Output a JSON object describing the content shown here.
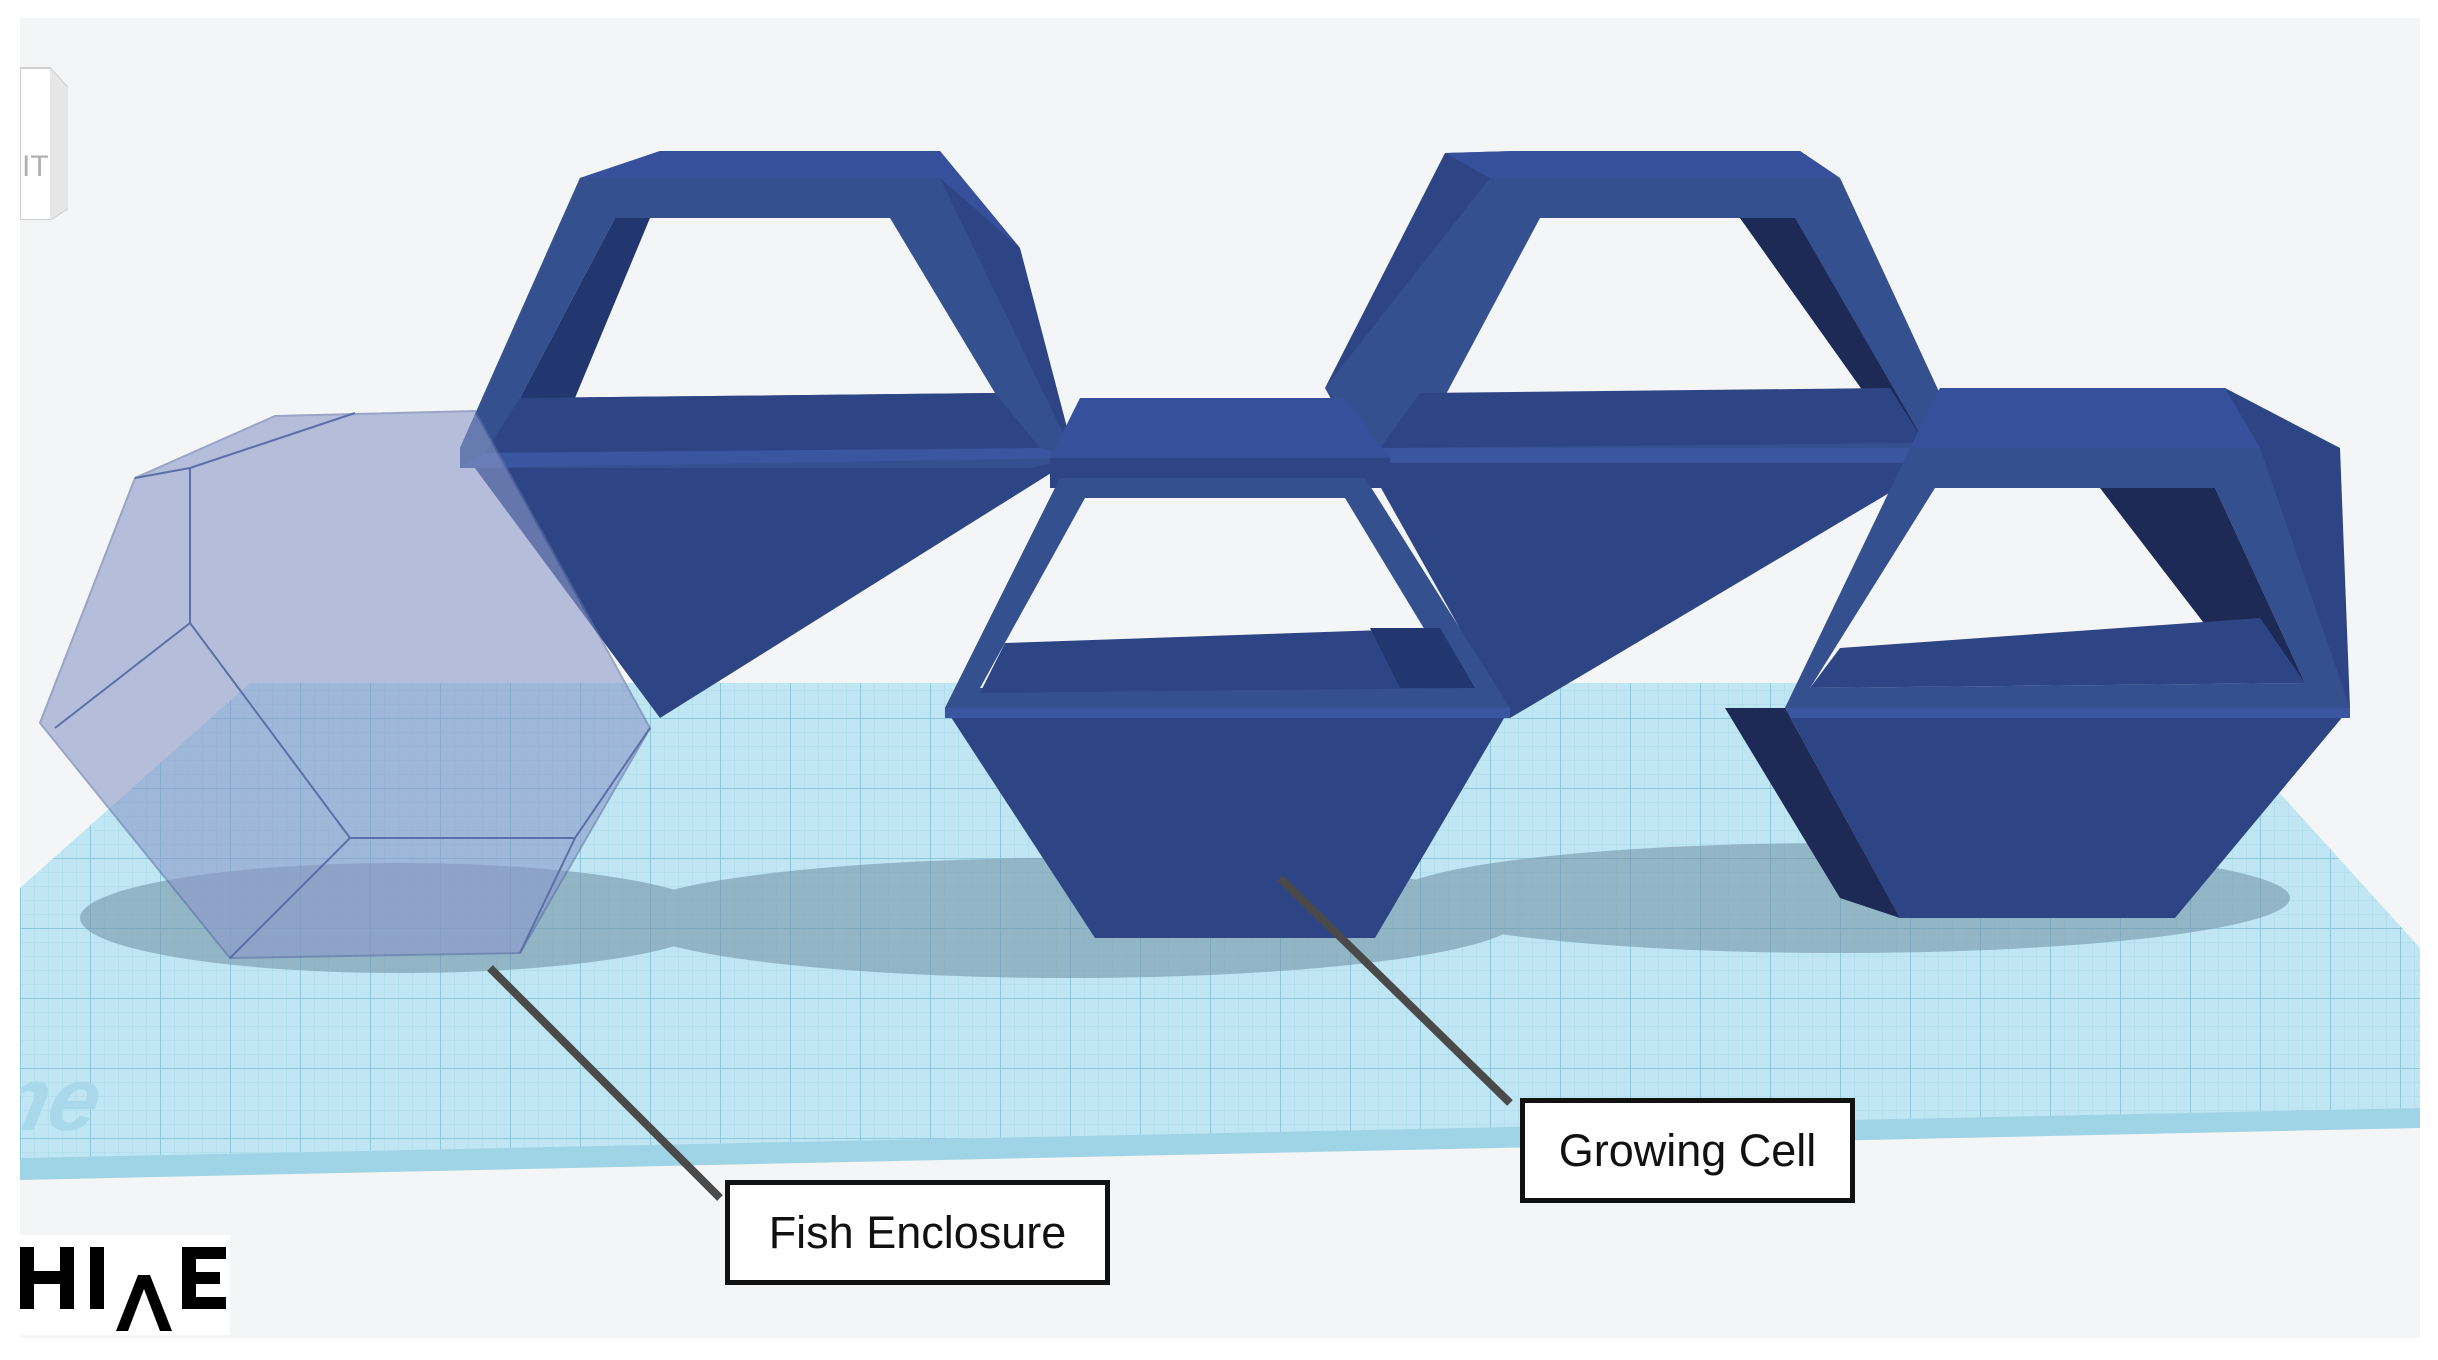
{
  "scene": {
    "workplane_label": "rkplane",
    "view_cube_label": "IT",
    "workplane_color": "#bfe6f2",
    "grid_color": "#8fcbe0",
    "cell_color_front": "#2e4585",
    "cell_color_top": "#36509b",
    "cell_color_inner_dark": "#1c2a55",
    "fish_enclosure_color": "#8b98c8"
  },
  "callouts": {
    "fish_enclosure": "Fish Enclosure",
    "growing_cell": "Growing Cell"
  },
  "logo": {
    "text": "HIVE"
  }
}
